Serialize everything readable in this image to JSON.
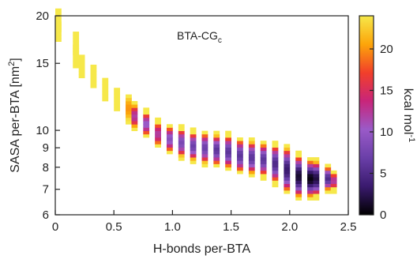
{
  "chart_data": {
    "type": "heatmap",
    "annotation": "BTA-CG",
    "annotation_sub": "c",
    "xlabel": "H-bonds per-BTA",
    "ylabel_main": "SASA per-BTA [nm",
    "ylabel_sup": "2",
    "ylabel_end": "]",
    "xlim": [
      0,
      2.5
    ],
    "ylim": [
      6,
      20
    ],
    "yscale": "log",
    "xticks": [
      0,
      0.5,
      1.0,
      1.5,
      2.0,
      2.5
    ],
    "xtick_labels": [
      "0",
      "0.5",
      "1.0",
      "1.5",
      "2.0",
      "2.5"
    ],
    "yticks": [
      6,
      7,
      8,
      9,
      10,
      15,
      20
    ],
    "ytick_labels": [
      "6",
      "7",
      "8",
      "9",
      "10",
      "15",
      "20"
    ],
    "colorbar": {
      "label_main": "kcal mol",
      "label_sup": "-1",
      "range": [
        0,
        24
      ],
      "ticks": [
        0,
        5,
        10,
        15,
        20
      ],
      "tick_labels": [
        "0",
        "5",
        "10",
        "15",
        "20"
      ],
      "colors": [
        "#000000",
        "#3a1a6e",
        "#6a3fa8",
        "#9a5ac8",
        "#c8257a",
        "#f23f2a",
        "#fca50a",
        "#f6e84a"
      ]
    },
    "ridge": [
      {
        "x": 0.0,
        "y": 19.3,
        "w": 0.7,
        "v": 24
      },
      {
        "x": 0.0,
        "y": 18.0,
        "w": 0.7,
        "v": 24
      },
      {
        "x": 0.15,
        "y": 16.8,
        "w": 0.7,
        "v": 24
      },
      {
        "x": 0.15,
        "y": 15.6,
        "w": 0.7,
        "v": 24
      },
      {
        "x": 0.2,
        "y": 14.6,
        "w": 0.7,
        "v": 24
      },
      {
        "x": 0.32,
        "y": 13.7,
        "w": 0.7,
        "v": 24
      },
      {
        "x": 0.4,
        "y": 12.7,
        "w": 0.7,
        "v": 24
      },
      {
        "x": 0.5,
        "y": 12.0,
        "w": 0.7,
        "v": 24
      },
      {
        "x": 0.58,
        "y": 11.3,
        "w": 1.0,
        "v": 20
      },
      {
        "x": 0.66,
        "y": 10.8,
        "w": 1.0,
        "v": 12
      },
      {
        "x": 0.76,
        "y": 10.3,
        "w": 1.0,
        "v": 10
      },
      {
        "x": 0.86,
        "y": 9.7,
        "w": 1.0,
        "v": 12
      },
      {
        "x": 0.96,
        "y": 9.4,
        "w": 1.1,
        "v": 9
      },
      {
        "x": 1.06,
        "y": 9.2,
        "w": 1.2,
        "v": 8
      },
      {
        "x": 1.16,
        "y": 9.0,
        "w": 1.2,
        "v": 7
      },
      {
        "x": 1.26,
        "y": 8.9,
        "w": 1.3,
        "v": 7
      },
      {
        "x": 1.36,
        "y": 8.8,
        "w": 1.3,
        "v": 6
      },
      {
        "x": 1.46,
        "y": 8.7,
        "w": 1.4,
        "v": 6
      },
      {
        "x": 1.56,
        "y": 8.5,
        "w": 1.4,
        "v": 6
      },
      {
        "x": 1.66,
        "y": 8.4,
        "w": 1.4,
        "v": 6
      },
      {
        "x": 1.76,
        "y": 8.3,
        "w": 1.4,
        "v": 6
      },
      {
        "x": 1.86,
        "y": 8.1,
        "w": 1.6,
        "v": 5
      },
      {
        "x": 1.96,
        "y": 7.8,
        "w": 1.9,
        "v": 3.5
      },
      {
        "x": 2.06,
        "y": 7.5,
        "w": 1.8,
        "v": 1.5
      },
      {
        "x": 2.14,
        "y": 7.4,
        "w": 1.6,
        "v": 0.5
      },
      {
        "x": 2.22,
        "y": 7.4,
        "w": 1.5,
        "v": 2
      },
      {
        "x": 2.3,
        "y": 7.4,
        "w": 1.0,
        "v": 5
      },
      {
        "x": 2.37,
        "y": 7.3,
        "w": 0.7,
        "v": 12
      }
    ]
  }
}
